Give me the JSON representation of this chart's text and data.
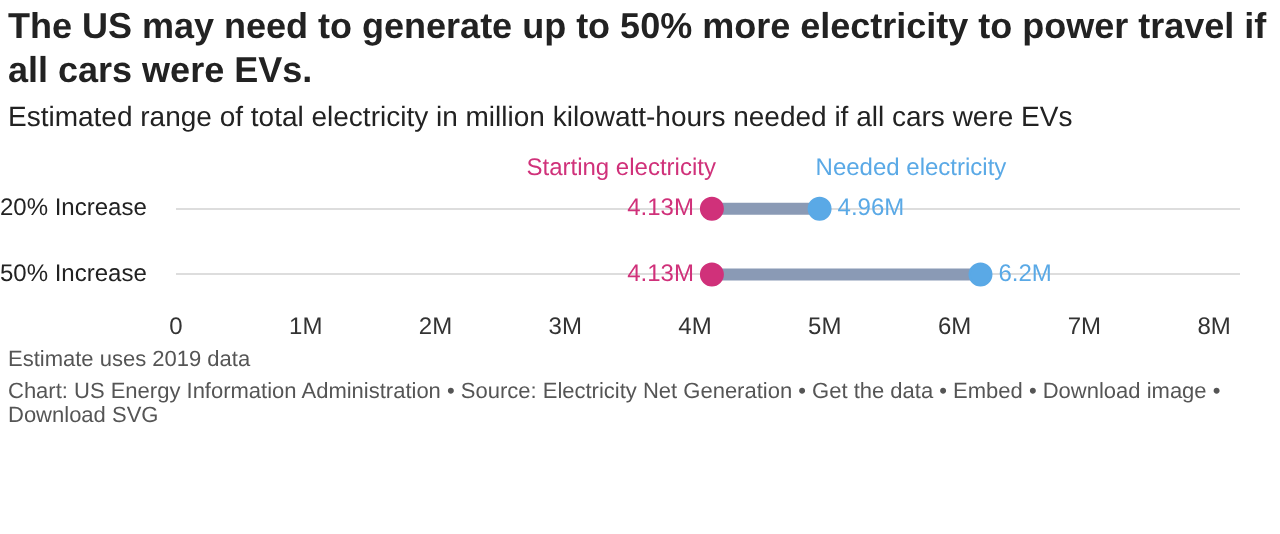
{
  "chart_data": {
    "type": "scatter",
    "orientation": "horizontal",
    "title": "The US may need to generate up to 50% more electricity to power travel if all cars were EVs.",
    "subtitle": "Estimated range of total electricity in million kilowatt-hours needed if all cars were EVs",
    "categories": [
      "20% Increase",
      "50% Increase"
    ],
    "series": [
      {
        "name": "Starting electricity",
        "color": "#d0317a",
        "values": [
          4.13,
          4.13
        ],
        "value_labels": [
          "4.13M",
          "4.13M"
        ]
      },
      {
        "name": "Needed electricity",
        "color": "#5aa9e6",
        "values": [
          4.96,
          6.2
        ],
        "value_labels": [
          "4.96M",
          "6.2M"
        ]
      }
    ],
    "xlim": [
      0,
      8.2
    ],
    "xticks": [
      0,
      {
        "value": 1,
        "label": "1M"
      },
      {
        "value": 2,
        "label": "2M"
      },
      {
        "value": 3,
        "label": "3M"
      },
      {
        "value": 4,
        "label": "4M"
      },
      {
        "value": 5,
        "label": "5M"
      },
      {
        "value": 6,
        "label": "6M"
      },
      {
        "value": 7,
        "label": "7M"
      },
      {
        "value": 8,
        "label": "8M"
      }
    ],
    "grid": "y",
    "marker": "circle",
    "data_labels": true,
    "annotations": [
      "Estimate uses 2019 data",
      "Chart: US Energy Information Administration • Source: Electricity Net Generation • Get the data • Embed • Download image • Download SVG"
    ]
  }
}
